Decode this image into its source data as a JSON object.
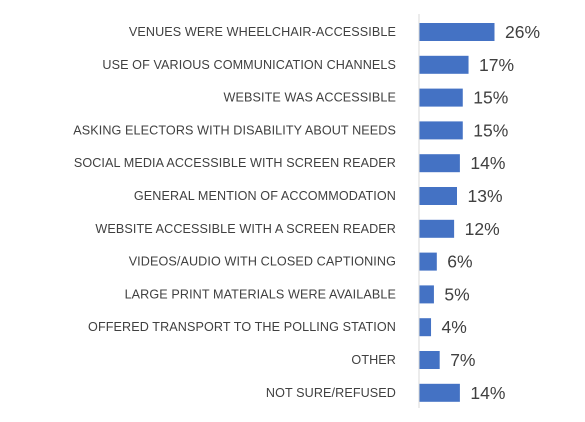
{
  "chart_data": {
    "type": "bar",
    "orientation": "horizontal",
    "categories": [
      "VENUES WERE WHEELCHAIR-ACCESSIBLE",
      "USE OF VARIOUS COMMUNICATION CHANNELS",
      "WEBSITE WAS ACCESSIBLE",
      "ASKING ELECTORS WITH DISABILITY ABOUT NEEDS",
      "SOCIAL MEDIA ACCESSIBLE WITH SCREEN READER",
      "GENERAL MENTION OF ACCOMMODATION",
      "WEBSITE ACCESSIBLE WITH A SCREEN READER",
      "VIDEOS/AUDIO WITH CLOSED CAPTIONING",
      "LARGE PRINT MATERIALS WERE AVAILABLE",
      "OFFERED TRANSPORT TO THE POLLING STATION",
      "OTHER",
      "NOT SURE/REFUSED"
    ],
    "values": [
      26,
      17,
      15,
      15,
      14,
      13,
      12,
      6,
      5,
      4,
      7,
      14
    ],
    "data_labels": [
      "26%",
      "17%",
      "15%",
      "15%",
      "14%",
      "13%",
      "12%",
      "6%",
      "5%",
      "4%",
      "7%",
      "14%"
    ],
    "unit": "%",
    "xlim": [
      0,
      26
    ],
    "bar_color": "#4472C4",
    "axis_color": "#D9D9D9",
    "text_color": "#404040",
    "grid": false,
    "legend": "none"
  }
}
